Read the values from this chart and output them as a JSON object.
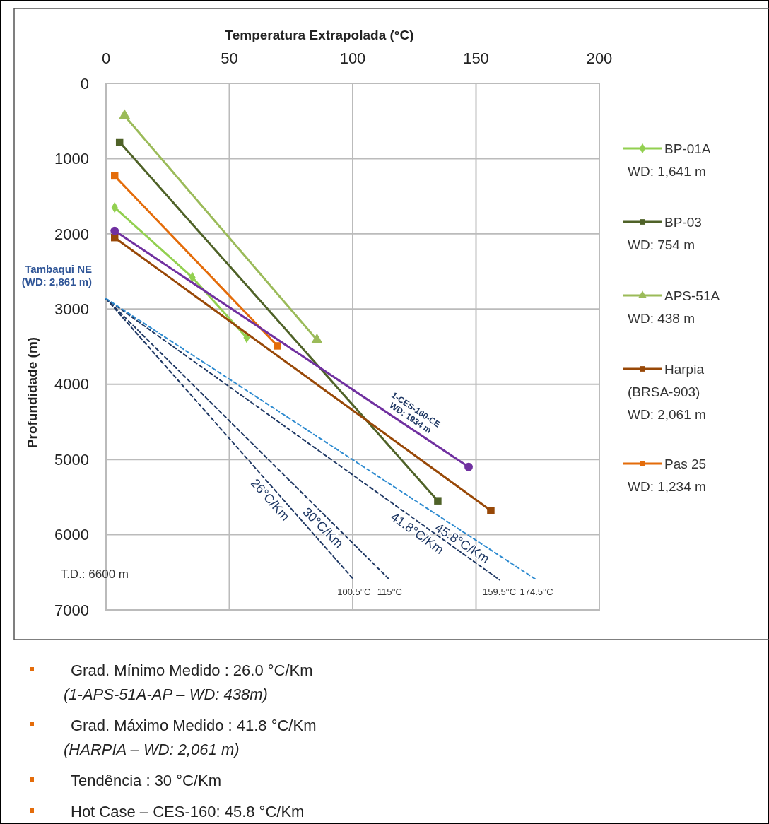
{
  "chart_data": {
    "type": "line",
    "xlabel": "Temperatura Extrapolada (°C)",
    "ylabel": "Profundidade (m)",
    "xlim": [
      0,
      200
    ],
    "xticks": [
      0,
      50,
      100,
      150,
      200
    ],
    "ylim": [
      7000,
      0
    ],
    "yticks": [
      0,
      1000,
      2000,
      3000,
      4000,
      5000,
      6000,
      7000
    ],
    "grid": true,
    "legend": "right",
    "series": [
      {
        "name": "BP-01A\nWD: 1,641 m",
        "color": "#92d050",
        "marker": "diamond",
        "x": [
          3.5,
          35,
          57
        ],
        "values": [
          1650,
          2580,
          3380
        ]
      },
      {
        "name": "BP-03\nWD: 754 m",
        "color": "#4f6228",
        "marker": "square",
        "x": [
          5.5,
          134.5
        ],
        "values": [
          780,
          5550
        ]
      },
      {
        "name": "APS-51A\nWD: 438 m",
        "color": "#9bbb59",
        "marker": "triangle",
        "x": [
          7.5,
          85.5
        ],
        "values": [
          430,
          3410
        ]
      },
      {
        "name": "Harpia\n(BRSA-903)\nWD: 2,061 m",
        "color": "#984807",
        "marker": "square",
        "x": [
          3.5,
          156
        ],
        "values": [
          2050,
          5680
        ]
      },
      {
        "name": "Pas 25\nWD: 1,234 m",
        "color": "#e46c0a",
        "marker": "square",
        "x": [
          3.5,
          69.5
        ],
        "values": [
          1230,
          3490
        ]
      },
      {
        "color": "#7030a0",
        "marker": "circle",
        "x": [
          3.5,
          147
        ],
        "values": [
          1960,
          5100
        ]
      },
      {
        "color": "#1f3864",
        "line_style": "dashed",
        "marker": "none",
        "x": [
          0,
          100.5
        ],
        "values": [
          2861,
          6600
        ]
      },
      {
        "color": "#1f3864",
        "line_style": "dashed",
        "marker": "none",
        "x": [
          0,
          115
        ],
        "values": [
          2861,
          6600
        ]
      },
      {
        "color": "#1f3864",
        "line_style": "dashed",
        "marker": "none",
        "x": [
          0,
          159.5
        ],
        "values": [
          2861,
          6600
        ]
      },
      {
        "color": "#2e8bd0",
        "line_style": "dashed",
        "marker": "none",
        "x": [
          0,
          174.5
        ],
        "values": [
          2861,
          6600
        ]
      }
    ],
    "annotations": [
      {
        "text": "1-CES-160-CE\nWD: 1934 m",
        "x": 121.5,
        "y": 4542
      },
      {
        "text": "26°C/Km",
        "x": 69.6,
        "y": 5450
      },
      {
        "text": "30°C/Km",
        "x": 90.8,
        "y": 5813
      },
      {
        "text": "41.8°C/Km",
        "x": 128.5,
        "y": 5873
      },
      {
        "text": "45.8°C/Km",
        "x": 146.6,
        "y": 6002
      },
      {
        "text": "100.5°C",
        "x": 100.5,
        "y": 6600
      },
      {
        "text": "115°C",
        "x": 115,
        "y": 6600
      },
      {
        "text": "159.5°C",
        "x": 159.5,
        "y": 6600
      },
      {
        "text": "174.5°C",
        "x": 174.5,
        "y": 6600
      },
      {
        "text": "Tambaqui NE\n(WD: 2,861 m)",
        "x": 0,
        "y": 2861
      },
      "T.D.: 6600 m",
      "Grad. Mínimo Medido : 26.0 °C/Km\n(1-APS-51A-AP – WD: 438m)",
      "Grad. Máximo Medido : 41.8 °C/Km\n(HARPIA – WD: 2,061 m)",
      "Tendência : 30 °C/Km",
      "Hot Case – CES-160: 45.8 °C/Km"
    ]
  }
}
